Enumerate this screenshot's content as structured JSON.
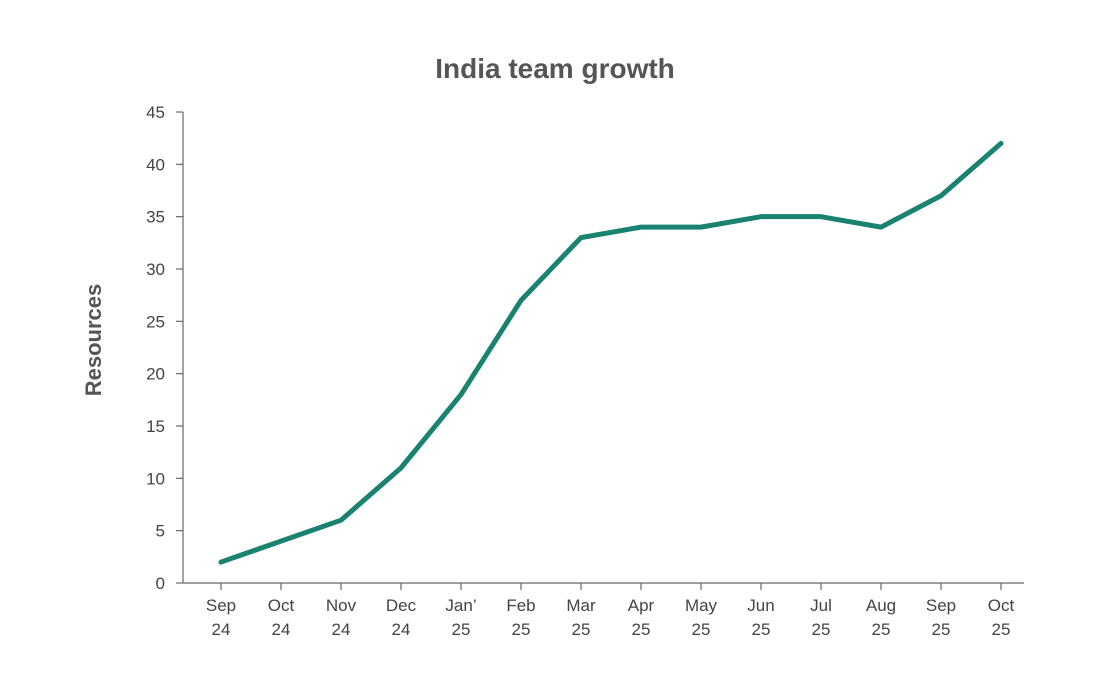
{
  "chart_data": {
    "type": "line",
    "title": "India team growth",
    "xlabel": "",
    "ylabel": "Resources",
    "categories": [
      [
        "Sep",
        "24"
      ],
      [
        "Oct",
        "24"
      ],
      [
        "Nov",
        "24"
      ],
      [
        "Dec",
        "24"
      ],
      [
        "Jan’",
        "25"
      ],
      [
        "Feb",
        "25"
      ],
      [
        "Mar",
        "25"
      ],
      [
        "Apr",
        "25"
      ],
      [
        "May",
        "25"
      ],
      [
        "Jun",
        "25"
      ],
      [
        "Jul",
        "25"
      ],
      [
        "Aug",
        "25"
      ],
      [
        "Sep",
        "25"
      ],
      [
        "Oct",
        "25"
      ]
    ],
    "series": [
      {
        "values": [
          2,
          4,
          6,
          11,
          18,
          27,
          33,
          34,
          34,
          35,
          35,
          34,
          37,
          42
        ],
        "color": "#1a8270"
      }
    ],
    "ylim": [
      0,
      45
    ],
    "yticks": [
      0,
      5,
      10,
      15,
      20,
      25,
      30,
      35,
      40,
      45
    ],
    "grid": false,
    "legend": "none"
  }
}
